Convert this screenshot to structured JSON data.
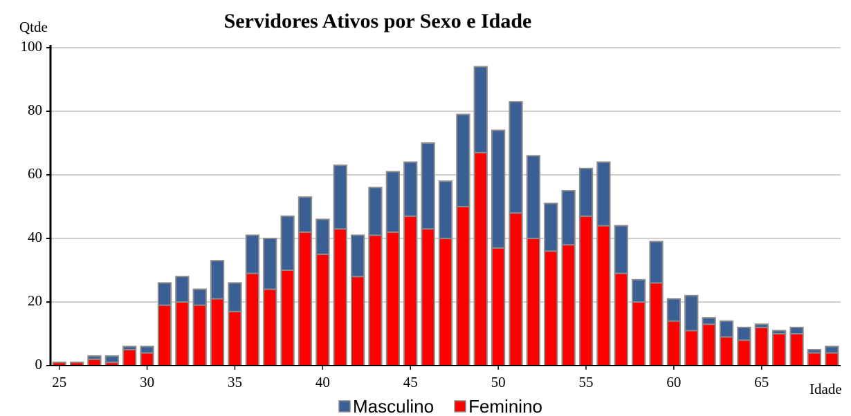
{
  "chart_data": {
    "type": "bar",
    "stacked": true,
    "title": "Servidores Ativos por Sexo e Idade",
    "y_label": "Qtde",
    "x_label": "Idade",
    "x": [
      25,
      26,
      27,
      28,
      29,
      30,
      31,
      32,
      33,
      34,
      35,
      36,
      37,
      38,
      39,
      40,
      41,
      42,
      43,
      44,
      45,
      46,
      47,
      48,
      49,
      50,
      51,
      52,
      53,
      54,
      55,
      56,
      57,
      58,
      59,
      60,
      61,
      62,
      63,
      64,
      65,
      66,
      67,
      68,
      69
    ],
    "series": [
      {
        "name": "Masculino",
        "color": "#3a5f95",
        "values": [
          0,
          0,
          1,
          2,
          1,
          2,
          7,
          8,
          5,
          12,
          9,
          12,
          16,
          17,
          11,
          11,
          20,
          13,
          15,
          19,
          17,
          27,
          18,
          29,
          27,
          37,
          35,
          26,
          15,
          17,
          15,
          20,
          15,
          7,
          13,
          7,
          11,
          2,
          5,
          4,
          1,
          1,
          2,
          1,
          2
        ]
      },
      {
        "name": "Feminino",
        "color": "#ff0000",
        "values": [
          1,
          1,
          2,
          1,
          5,
          4,
          19,
          20,
          19,
          21,
          17,
          29,
          24,
          30,
          42,
          35,
          43,
          28,
          41,
          42,
          47,
          43,
          40,
          50,
          67,
          37,
          48,
          40,
          36,
          38,
          47,
          44,
          29,
          20,
          26,
          14,
          11,
          13,
          9,
          8,
          12,
          10,
          10,
          4,
          4
        ]
      }
    ],
    "xlim": [
      24.5,
      69.5
    ],
    "xticks": [
      25,
      30,
      35,
      40,
      45,
      50,
      55,
      60,
      65
    ],
    "ylim": [
      0,
      100
    ],
    "yticks": [
      0,
      20,
      40,
      60,
      80,
      100
    ],
    "grid": true,
    "legend": "bottom"
  }
}
